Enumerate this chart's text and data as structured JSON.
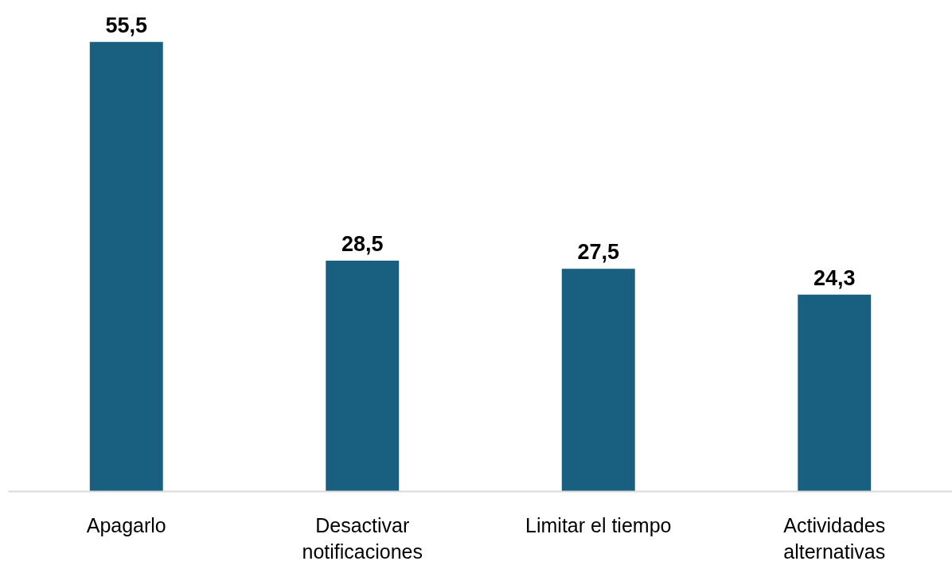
{
  "chart_data": {
    "type": "bar",
    "categories": [
      "Apagarlo",
      "Desactivar notificaciones",
      "Limitar el tiempo",
      "Actividades alternativas"
    ],
    "values": [
      55.5,
      28.5,
      27.5,
      24.3
    ],
    "value_labels": [
      "55,5",
      "28,5",
      "27,5",
      "24,3"
    ],
    "color": "#185f80",
    "tick_labels": "x",
    "grid": false
  }
}
